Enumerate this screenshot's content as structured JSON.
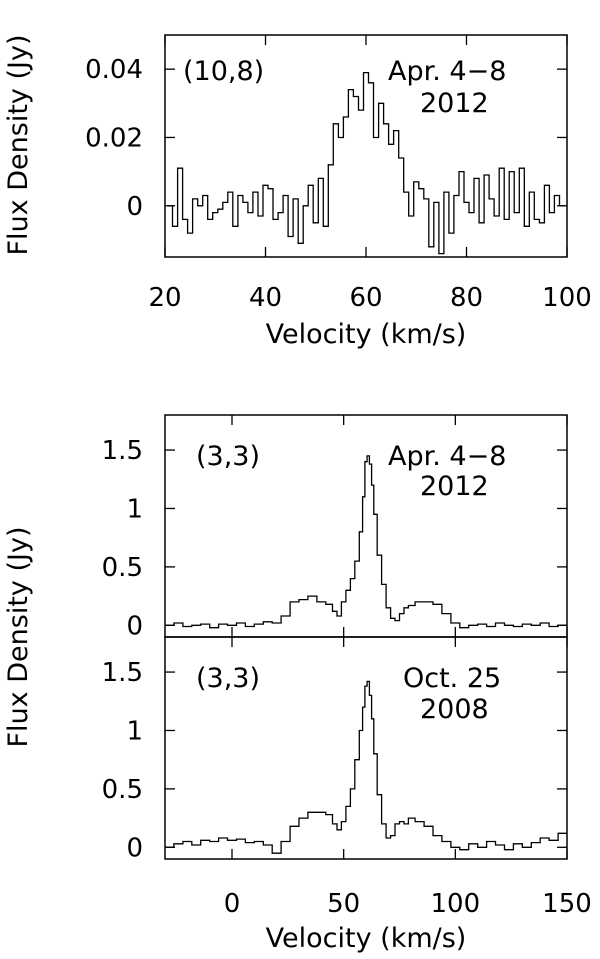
{
  "chart_data": [
    {
      "type": "line",
      "step": true,
      "annotation_left": "(10,8)",
      "annotation_right_1": "Apr. 4−8",
      "annotation_right_2": "2012",
      "ylabel": "Flux Density (Jy)",
      "xlabel": "Velocity (km/s)",
      "xlim": [
        20,
        100
      ],
      "ylim": [
        -0.015,
        0.05
      ],
      "xticks": [
        20,
        40,
        60,
        80,
        100
      ],
      "xtick_labels": [
        "20",
        "40",
        "60",
        "80",
        "100"
      ],
      "yticks": [
        0,
        0.02,
        0.04
      ],
      "ytick_labels": [
        "0",
        "0.02",
        "0.04"
      ],
      "x": [
        21,
        22,
        23,
        24,
        25,
        26,
        27,
        28,
        29,
        30,
        31,
        32,
        33,
        34,
        35,
        36,
        37,
        38,
        39,
        40,
        41,
        42,
        43,
        44,
        45,
        46,
        47,
        48,
        49,
        50,
        51,
        52,
        53,
        54,
        55,
        56,
        57,
        58,
        59,
        60,
        61,
        62,
        63,
        64,
        65,
        66,
        67,
        68,
        69,
        70,
        71,
        72,
        73,
        74,
        75,
        76,
        77,
        78,
        79,
        80,
        81,
        82,
        83,
        84,
        85,
        86,
        87,
        88,
        89,
        90,
        91,
        92,
        93,
        94,
        95,
        96,
        97,
        98,
        99
      ],
      "values": [
        0.0,
        -0.006,
        0.011,
        -0.004,
        -0.008,
        0.002,
        0.0,
        0.003,
        -0.004,
        -0.002,
        -0.001,
        0.001,
        0.004,
        -0.006,
        0.003,
        0.001,
        -0.002,
        0.004,
        -0.003,
        0.006,
        0.005,
        -0.004,
        -0.002,
        0.003,
        -0.009,
        0.002,
        -0.011,
        0.0,
        0.006,
        -0.005,
        0.008,
        -0.006,
        0.012,
        0.024,
        0.02,
        0.026,
        0.034,
        0.032,
        0.028,
        0.039,
        0.036,
        0.02,
        0.03,
        0.024,
        0.018,
        0.022,
        0.014,
        0.004,
        -0.003,
        0.007,
        0.005,
        0.002,
        -0.012,
        0.001,
        -0.014,
        0.004,
        -0.008,
        0.003,
        0.01,
        0.001,
        -0.002,
        0.008,
        -0.005,
        0.009,
        0.002,
        -0.003,
        0.011,
        -0.004,
        0.01,
        -0.002,
        0.011,
        -0.006,
        0.004,
        -0.004,
        -0.005,
        0.006,
        -0.002,
        0.003,
        0.0
      ]
    },
    {
      "type": "line",
      "step": true,
      "annotation_left": "(3,3)",
      "annotation_right_1": "Apr. 4−8",
      "annotation_right_2": "2012",
      "xlim": [
        -30,
        150
      ],
      "ylim": [
        -0.1,
        1.8
      ],
      "yticks": [
        0,
        0.5,
        1,
        1.5
      ],
      "ytick_labels": [
        "0",
        "0.5",
        "1",
        "1.5"
      ],
      "x": [
        -28,
        -24,
        -20,
        -16,
        -12,
        -8,
        -4,
        0,
        4,
        8,
        12,
        16,
        20,
        24,
        28,
        32,
        36,
        40,
        44,
        46,
        48,
        50,
        52,
        54,
        56,
        58,
        59,
        60,
        61,
        62,
        63,
        64,
        66,
        68,
        70,
        72,
        74,
        76,
        78,
        80,
        84,
        88,
        92,
        96,
        100,
        104,
        108,
        112,
        116,
        120,
        124,
        128,
        132,
        136,
        140,
        144,
        148
      ],
      "values": [
        0.0,
        0.02,
        -0.01,
        0.0,
        0.01,
        -0.02,
        0.01,
        0.0,
        0.02,
        -0.01,
        0.01,
        0.03,
        0.02,
        0.08,
        0.2,
        0.22,
        0.25,
        0.2,
        0.18,
        0.12,
        0.08,
        0.2,
        0.3,
        0.4,
        0.55,
        0.8,
        1.1,
        1.4,
        1.45,
        1.38,
        1.2,
        0.95,
        0.6,
        0.35,
        0.15,
        0.06,
        0.04,
        0.1,
        0.15,
        0.17,
        0.2,
        0.2,
        0.18,
        0.1,
        0.02,
        -0.02,
        0.0,
        0.01,
        -0.01,
        0.02,
        0.0,
        -0.01,
        0.01,
        0.0,
        0.02,
        -0.01,
        0.0
      ]
    },
    {
      "type": "line",
      "step": true,
      "annotation_left": "(3,3)",
      "annotation_right_1": "Oct. 25",
      "annotation_right_2": "2008",
      "xlabel": "Velocity (km/s)",
      "xlim": [
        -30,
        150
      ],
      "ylim": [
        -0.1,
        1.8
      ],
      "xticks": [
        0,
        50,
        100,
        150
      ],
      "xtick_labels": [
        "0",
        "50",
        "100",
        "150"
      ],
      "yticks": [
        0,
        0.5,
        1,
        1.5
      ],
      "ytick_labels": [
        "0",
        "0.5",
        "1",
        "1.5"
      ],
      "x": [
        -28,
        -24,
        -20,
        -16,
        -12,
        -8,
        -4,
        0,
        4,
        8,
        12,
        16,
        20,
        24,
        28,
        32,
        36,
        40,
        44,
        46,
        48,
        50,
        52,
        54,
        56,
        58,
        59,
        60,
        61,
        62,
        63,
        64,
        66,
        68,
        70,
        72,
        74,
        76,
        78,
        80,
        84,
        88,
        92,
        96,
        100,
        104,
        108,
        112,
        116,
        120,
        124,
        128,
        132,
        136,
        140,
        144,
        148
      ],
      "values": [
        0.0,
        0.03,
        0.05,
        0.02,
        0.06,
        0.05,
        0.08,
        0.06,
        0.07,
        0.04,
        0.05,
        0.02,
        -0.05,
        0.05,
        0.18,
        0.25,
        0.3,
        0.3,
        0.28,
        0.2,
        0.15,
        0.22,
        0.35,
        0.5,
        0.75,
        1.0,
        1.2,
        1.38,
        1.42,
        1.3,
        1.1,
        0.8,
        0.45,
        0.2,
        0.08,
        0.1,
        0.2,
        0.22,
        0.2,
        0.25,
        0.22,
        0.18,
        0.1,
        0.05,
        0.0,
        -0.02,
        0.03,
        0.0,
        0.05,
        0.02,
        -0.02,
        0.03,
        0.0,
        0.04,
        0.08,
        0.06,
        0.12
      ]
    }
  ]
}
